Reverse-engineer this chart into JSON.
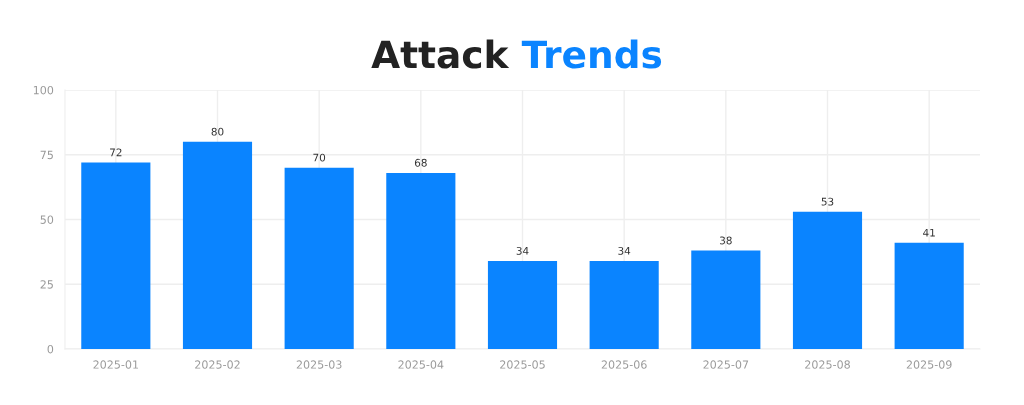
{
  "chart_data": {
    "type": "bar",
    "title": "Attack Trends",
    "categories": [
      "2025-01",
      "2025-02",
      "2025-03",
      "2025-04",
      "2025-05",
      "2025-06",
      "2025-07",
      "2025-08",
      "2025-09"
    ],
    "values": [
      72,
      80,
      70,
      68,
      34,
      34,
      38,
      53,
      41
    ],
    "color": "#0a84ff",
    "ylim": [
      0,
      100
    ],
    "yticks": [
      0,
      25,
      50,
      75,
      100
    ],
    "grid": true,
    "data_labels": true
  }
}
